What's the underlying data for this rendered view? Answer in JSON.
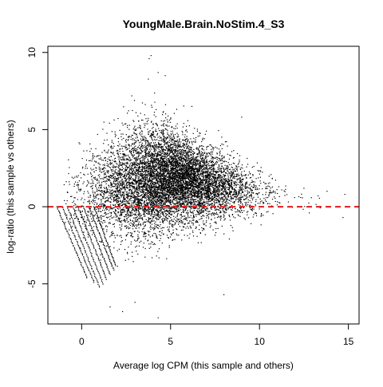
{
  "chart_data": {
    "type": "scatter",
    "title": "YoungMale.Brain.NoStim.4_S3",
    "xlabel": "Average log CPM (this sample and others)",
    "ylabel": "log-ratio (this sample vs others)",
    "xlim": [
      -1.9,
      15.6
    ],
    "ylim": [
      -7.6,
      10.4
    ],
    "xticks": [
      0,
      5,
      10,
      15
    ],
    "yticks": [
      -5,
      0,
      5,
      10
    ],
    "grid": false,
    "legend": "none",
    "reference_line": {
      "y": 0,
      "style": "dashed",
      "color": "#e31a1c"
    },
    "point_color": "#000000",
    "low_count_bands": {
      "description_values": "diagonal stripes of points at small integer counts",
      "bands": [
        {
          "x_start": -1.4,
          "x_end": 0.3,
          "y_start": 0.0,
          "y_end": -4.6
        },
        {
          "x_start": -1.1,
          "x_end": 0.7,
          "y_start": 0.0,
          "y_end": -4.9
        },
        {
          "x_start": -0.8,
          "x_end": 1.0,
          "y_start": 0.0,
          "y_end": -5.2
        },
        {
          "x_start": -0.5,
          "x_end": 1.2,
          "y_start": 0.0,
          "y_end": -5.0
        },
        {
          "x_start": -0.2,
          "x_end": 1.4,
          "y_start": 0.0,
          "y_end": -4.7
        },
        {
          "x_start": 0.1,
          "x_end": 1.6,
          "y_start": 0.0,
          "y_end": -4.4
        },
        {
          "x_start": 0.4,
          "x_end": 1.8,
          "y_start": 0.0,
          "y_end": -4.1
        },
        {
          "x_start": 0.7,
          "x_end": 1.9,
          "y_start": 0.0,
          "y_end": -3.8
        }
      ]
    },
    "cloud": {
      "center_x": 5.0,
      "center_y": 2.0,
      "n_points": 9000,
      "x_range": [
        -1.0,
        13.5
      ],
      "y_range": [
        -7.0,
        9.8
      ]
    },
    "outliers": [
      {
        "x": 3.9,
        "y": 9.8
      },
      {
        "x": 3.8,
        "y": 9.6
      },
      {
        "x": 4.3,
        "y": 8.7
      },
      {
        "x": 4.7,
        "y": 8.5
      },
      {
        "x": 6.2,
        "y": 6.5
      },
      {
        "x": 9.0,
        "y": 5.8
      },
      {
        "x": 12.5,
        "y": 1.2
      },
      {
        "x": 13.3,
        "y": 0.7
      },
      {
        "x": 13.8,
        "y": 1.0
      },
      {
        "x": 14.8,
        "y": 0.8
      },
      {
        "x": 14.7,
        "y": -0.7
      },
      {
        "x": 12.8,
        "y": -0.4
      },
      {
        "x": 2.3,
        "y": -6.8
      },
      {
        "x": 1.6,
        "y": -6.5
      },
      {
        "x": 4.3,
        "y": -7.2
      },
      {
        "x": 8.0,
        "y": -5.7
      },
      {
        "x": 3.0,
        "y": -6.2
      }
    ]
  }
}
